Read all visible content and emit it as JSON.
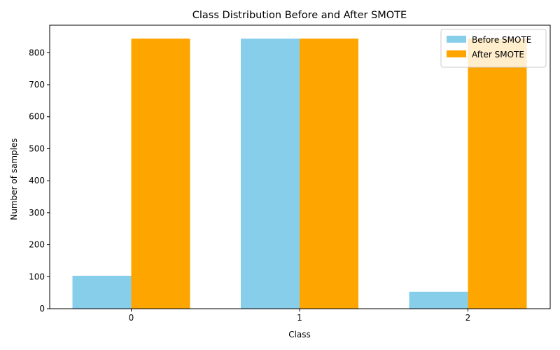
{
  "chart_data": {
    "type": "bar",
    "title": "Class Distribution Before and After SMOTE",
    "xlabel": "Class",
    "ylabel": "Number of samples",
    "categories": [
      "0",
      "1",
      "2"
    ],
    "series": [
      {
        "name": "Before SMOTE",
        "values": [
          103,
          844,
          53
        ],
        "color": "#87ceeb"
      },
      {
        "name": "After SMOTE",
        "values": [
          844,
          844,
          844
        ],
        "color": "#ffa500"
      }
    ],
    "ylim": [
      0,
      886
    ],
    "yticks": [
      0,
      100,
      200,
      300,
      400,
      500,
      600,
      700,
      800
    ],
    "grid": false,
    "legend_position": "top-right"
  }
}
